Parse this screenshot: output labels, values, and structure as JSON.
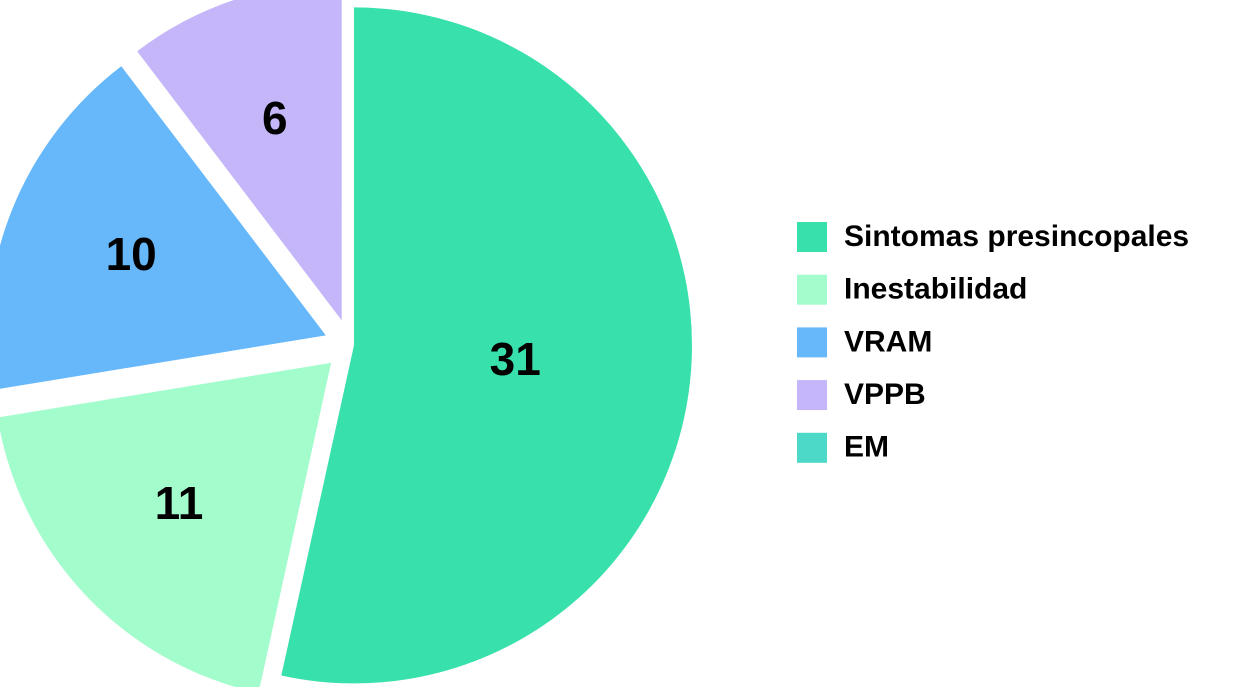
{
  "chart_data": {
    "type": "pie",
    "categories": [
      "Sintomas presincopales",
      "Inestabilidad",
      "VRAM",
      "VPPB",
      "EM"
    ],
    "values": [
      31,
      11,
      10,
      6,
      0
    ],
    "colors": [
      "#38e0ab",
      "#a3fccc",
      "#66b8fa",
      "#c5b5f9",
      "#4dd9c8"
    ],
    "legend": "right"
  }
}
